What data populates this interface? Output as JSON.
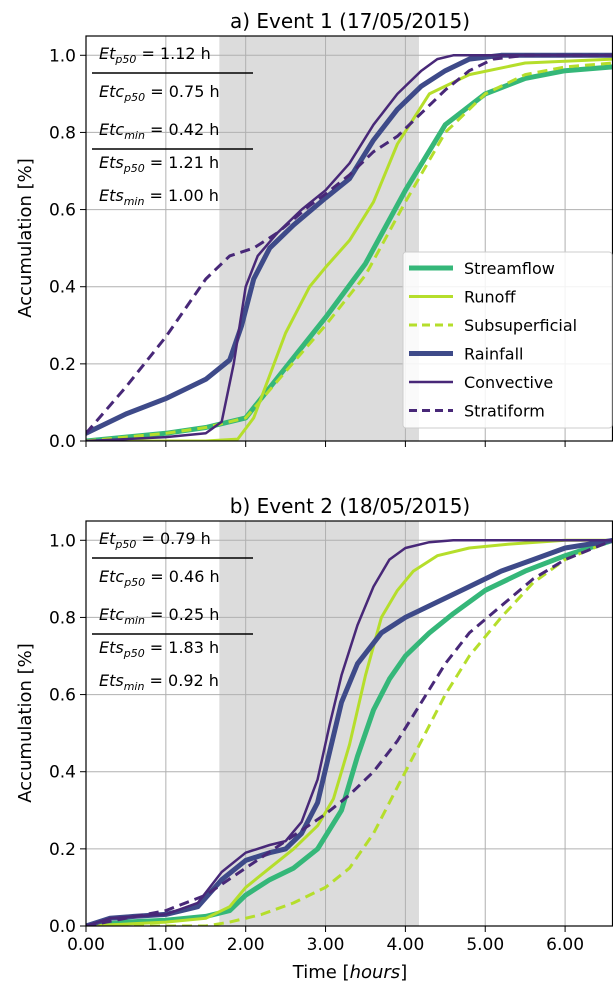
{
  "figure": {
    "xlabel_prefix": "Time [",
    "xlabel_unit": "hours",
    "xlabel_suffix": "]",
    "ylabel": "Accumulation [%]",
    "colors": {
      "streamflow": "#35b779",
      "runoff": "#b5de2b",
      "subsuperficial": "#b5de2b",
      "rainfall": "#3e4a89",
      "convective": "#482878",
      "stratiform": "#482878",
      "shade": "#dcdcdc",
      "grid": "#b0b0b0"
    },
    "legend": [
      "Streamflow",
      "Runoff",
      "Subsuperficial",
      "Rainfall",
      "Convective",
      "Stratiform"
    ]
  },
  "chart_data": [
    {
      "type": "line",
      "title": "a) Event 1 (17/05/2015)",
      "xlim": [
        0,
        6.6
      ],
      "ylim": [
        0,
        1.05
      ],
      "xticks": [
        "0.00",
        "1.00",
        "2.00",
        "3.00",
        "4.00",
        "5.00",
        "6.00"
      ],
      "yticks": [
        "0.0",
        "0.2",
        "0.4",
        "0.6",
        "0.8",
        "1.0"
      ],
      "show_xtick_labels": false,
      "shaded_interval": [
        1.67,
        4.17
      ],
      "grid": true,
      "legend_position": "center-right",
      "annotations": {
        "top": [
          "Et_p50 = 1.12 h",
          "Etc_p50 = 0.75 h",
          "Etc_min = 0.42 h"
        ],
        "bottom": [
          "Ets_p50 = 1.21 h",
          "Ets_min = 1.00 h"
        ]
      },
      "series": [
        {
          "name": "Streamflow",
          "x": [
            0,
            0.5,
            1.0,
            1.5,
            2.0,
            2.5,
            3.0,
            3.5,
            4.0,
            4.5,
            5.0,
            5.5,
            6.0,
            6.6
          ],
          "y": [
            0,
            0.01,
            0.02,
            0.035,
            0.06,
            0.19,
            0.32,
            0.46,
            0.65,
            0.82,
            0.9,
            0.94,
            0.96,
            0.97
          ]
        },
        {
          "name": "Runoff",
          "x": [
            0,
            1.5,
            1.9,
            2.1,
            2.3,
            2.5,
            2.8,
            3.0,
            3.3,
            3.6,
            3.9,
            4.3,
            4.8,
            5.5,
            6.6
          ],
          "y": [
            0,
            0,
            0.005,
            0.06,
            0.17,
            0.28,
            0.4,
            0.45,
            0.52,
            0.62,
            0.77,
            0.9,
            0.95,
            0.98,
            0.99
          ]
        },
        {
          "name": "Subsuperficial",
          "x": [
            0,
            0.5,
            1.0,
            1.5,
            2.0,
            2.5,
            3.0,
            3.5,
            4.0,
            4.5,
            5.0,
            5.5,
            6.0,
            6.6
          ],
          "y": [
            0,
            0.01,
            0.02,
            0.035,
            0.06,
            0.18,
            0.3,
            0.43,
            0.62,
            0.8,
            0.9,
            0.95,
            0.97,
            0.98
          ]
        },
        {
          "name": "Rainfall",
          "x": [
            0,
            0.5,
            1.0,
            1.5,
            1.8,
            1.95,
            2.1,
            2.3,
            2.6,
            3.0,
            3.3,
            3.6,
            3.9,
            4.2,
            4.5,
            4.8,
            5.2,
            6.6
          ],
          "y": [
            0.02,
            0.07,
            0.11,
            0.16,
            0.21,
            0.3,
            0.42,
            0.5,
            0.56,
            0.63,
            0.68,
            0.78,
            0.86,
            0.92,
            0.96,
            0.99,
            1.0,
            1.0
          ]
        },
        {
          "name": "Convective",
          "x": [
            0,
            0.5,
            1.0,
            1.5,
            1.7,
            1.85,
            2.0,
            2.15,
            2.4,
            2.7,
            3.0,
            3.3,
            3.6,
            3.9,
            4.2,
            4.4,
            4.6,
            6.6
          ],
          "y": [
            0,
            0.005,
            0.01,
            0.02,
            0.05,
            0.2,
            0.4,
            0.48,
            0.54,
            0.6,
            0.65,
            0.72,
            0.82,
            0.9,
            0.96,
            0.99,
            1.0,
            1.0
          ]
        },
        {
          "name": "Stratiform",
          "x": [
            0,
            0.5,
            1.0,
            1.5,
            1.8,
            2.1,
            2.4,
            2.8,
            3.0,
            3.3,
            3.6,
            3.9,
            4.2,
            4.5,
            4.8,
            5.1,
            5.5,
            6.6
          ],
          "y": [
            0.02,
            0.14,
            0.27,
            0.42,
            0.48,
            0.5,
            0.54,
            0.61,
            0.64,
            0.69,
            0.75,
            0.79,
            0.85,
            0.91,
            0.96,
            0.99,
            1.0,
            1.0
          ]
        }
      ]
    },
    {
      "type": "line",
      "title": "b) Event 2 (18/05/2015)",
      "xlim": [
        0,
        6.6
      ],
      "ylim": [
        0,
        1.05
      ],
      "xticks": [
        "0.00",
        "1.00",
        "2.00",
        "3.00",
        "4.00",
        "5.00",
        "6.00"
      ],
      "yticks": [
        "0.0",
        "0.2",
        "0.4",
        "0.6",
        "0.8",
        "1.0"
      ],
      "show_xtick_labels": true,
      "shaded_interval": [
        1.67,
        4.17
      ],
      "grid": true,
      "annotations": {
        "top": [
          "Et_p50 = 0.79 h",
          "Etc_p50 = 0.46 h",
          "Etc_min = 0.25 h"
        ],
        "bottom": [
          "Ets_p50 = 1.83 h",
          "Ets_min = 0.92 h"
        ]
      },
      "series": [
        {
          "name": "Streamflow",
          "x": [
            0,
            0.5,
            1.0,
            1.5,
            1.8,
            2.0,
            2.3,
            2.6,
            2.9,
            3.2,
            3.4,
            3.6,
            3.8,
            4.0,
            4.3,
            4.6,
            5.0,
            5.5,
            6.0,
            6.6
          ],
          "y": [
            0,
            0.01,
            0.015,
            0.025,
            0.04,
            0.08,
            0.12,
            0.15,
            0.2,
            0.3,
            0.44,
            0.56,
            0.64,
            0.7,
            0.76,
            0.81,
            0.87,
            0.92,
            0.96,
            1.0
          ]
        },
        {
          "name": "Runoff",
          "x": [
            0,
            1.0,
            1.5,
            1.8,
            2.0,
            2.3,
            2.6,
            2.9,
            3.1,
            3.3,
            3.5,
            3.7,
            3.9,
            4.1,
            4.4,
            4.8,
            5.3,
            6.0,
            6.6
          ],
          "y": [
            0,
            0.01,
            0.02,
            0.05,
            0.1,
            0.15,
            0.2,
            0.26,
            0.33,
            0.47,
            0.65,
            0.8,
            0.87,
            0.92,
            0.96,
            0.98,
            0.99,
            1.0,
            1.0
          ]
        },
        {
          "name": "Subsuperficial",
          "x": [
            0,
            1.5,
            1.8,
            2.2,
            2.6,
            3.0,
            3.3,
            3.6,
            3.9,
            4.2,
            4.5,
            4.8,
            5.2,
            5.6,
            6.0,
            6.6
          ],
          "y": [
            0,
            0,
            0.01,
            0.03,
            0.06,
            0.1,
            0.15,
            0.24,
            0.36,
            0.48,
            0.6,
            0.7,
            0.8,
            0.89,
            0.95,
            1.0
          ]
        },
        {
          "name": "Rainfall",
          "x": [
            0,
            0.3,
            0.6,
            1.0,
            1.4,
            1.7,
            2.0,
            2.3,
            2.5,
            2.7,
            2.9,
            3.05,
            3.2,
            3.4,
            3.7,
            4.0,
            4.4,
            4.8,
            5.2,
            5.6,
            6.0,
            6.6
          ],
          "y": [
            0,
            0.02,
            0.025,
            0.03,
            0.05,
            0.12,
            0.17,
            0.19,
            0.2,
            0.24,
            0.32,
            0.45,
            0.58,
            0.68,
            0.76,
            0.8,
            0.84,
            0.88,
            0.92,
            0.95,
            0.98,
            1.0
          ]
        },
        {
          "name": "Convective",
          "x": [
            0,
            0.3,
            0.6,
            1.0,
            1.4,
            1.7,
            2.0,
            2.3,
            2.5,
            2.7,
            2.9,
            3.05,
            3.2,
            3.4,
            3.6,
            3.8,
            4.0,
            4.3,
            4.6,
            5.0,
            6.6
          ],
          "y": [
            0,
            0.02,
            0.025,
            0.03,
            0.06,
            0.14,
            0.19,
            0.21,
            0.22,
            0.27,
            0.38,
            0.52,
            0.65,
            0.78,
            0.88,
            0.95,
            0.98,
            0.995,
            1.0,
            1.0,
            1.0
          ]
        },
        {
          "name": "Stratiform",
          "x": [
            0,
            0.5,
            1.0,
            1.5,
            2.0,
            2.5,
            3.0,
            3.3,
            3.6,
            3.9,
            4.2,
            4.5,
            4.8,
            5.2,
            5.6,
            6.0,
            6.6
          ],
          "y": [
            0,
            0.02,
            0.04,
            0.08,
            0.15,
            0.22,
            0.29,
            0.34,
            0.4,
            0.48,
            0.58,
            0.68,
            0.76,
            0.83,
            0.9,
            0.95,
            1.0
          ]
        }
      ]
    }
  ]
}
